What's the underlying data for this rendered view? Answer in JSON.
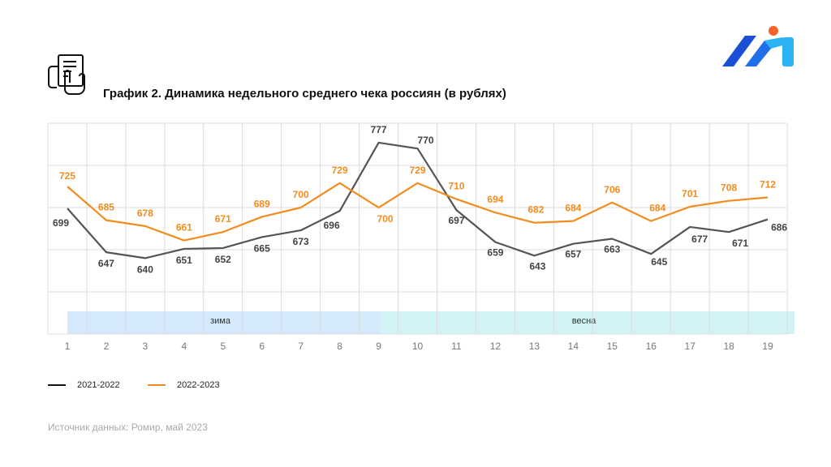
{
  "title": "График 2. Динамика недельного среднего чека россиян (в рублях)",
  "source": "Источник данных: Ромир, май 2023",
  "icons": {
    "header": "receipt-hand-icon",
    "logo": "romir-logo"
  },
  "colors": {
    "series1": "#555555",
    "series2": "#f28c1e",
    "winter": "#d4e9fb",
    "spring": "#d2f3f5",
    "logo_blue": "#1a4fd6",
    "logo_cyan": "#2bb3f5",
    "logo_dot": "#f5622a"
  },
  "chart_data": {
    "type": "line",
    "title": "График 2. Динамика недельного среднего чека россиян (в рублях)",
    "x": [
      1,
      2,
      3,
      4,
      5,
      6,
      7,
      8,
      9,
      10,
      11,
      12,
      13,
      14,
      15,
      16,
      17,
      18,
      19
    ],
    "ylim": [
      550,
      800
    ],
    "grid": true,
    "legend": "bottom-left",
    "series": [
      {
        "name": "2021-2022",
        "values": [
          699,
          647,
          640,
          651,
          652,
          665,
          673,
          696,
          777,
          770,
          697,
          659,
          643,
          657,
          663,
          645,
          677,
          671,
          686
        ]
      },
      {
        "name": "2022-2023",
        "values": [
          725,
          685,
          678,
          661,
          671,
          689,
          700,
          729,
          700,
          729,
          710,
          694,
          682,
          684,
          706,
          684,
          701,
          708,
          712
        ]
      }
    ],
    "bands": [
      {
        "label": "зима",
        "from": 1,
        "to": 9
      },
      {
        "label": "весна",
        "from": 9,
        "to": 19
      }
    ]
  }
}
